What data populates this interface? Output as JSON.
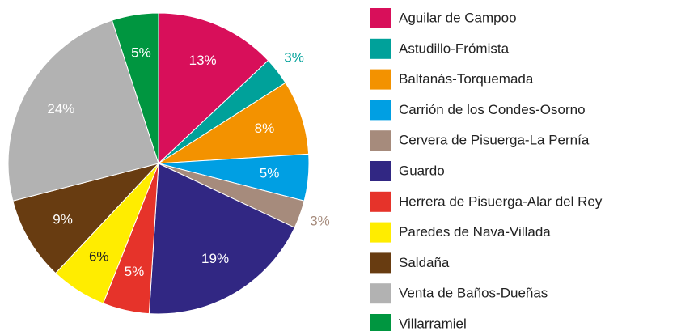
{
  "chart_data": {
    "type": "pie",
    "categories": [
      "Aguilar de Campoo",
      "Astudillo-Frómista",
      "Baltanás-Torquemada",
      "Carrión de los Condes-Osorno",
      "Cervera de Pisuerga-La Pernía",
      "Guardo",
      "Herrera de Pisuerga-Alar del Rey",
      "Paredes de Nava-Villada",
      "Saldaña",
      "Venta de Baños-Dueñas",
      "Villarramiel"
    ],
    "values": [
      13,
      3,
      8,
      5,
      3,
      19,
      5,
      6,
      9,
      24,
      5
    ],
    "value_labels": [
      "13%",
      "3%",
      "8%",
      "5%",
      "3%",
      "19%",
      "5%",
      "6%",
      "9%",
      "24%",
      "5%"
    ],
    "colors": [
      "#d80f5a",
      "#00a19a",
      "#f39200",
      "#009fe3",
      "#a68b7c",
      "#312783",
      "#e6332a",
      "#ffed00",
      "#683c11",
      "#b2b2b2",
      "#009640"
    ],
    "legend": "right"
  }
}
